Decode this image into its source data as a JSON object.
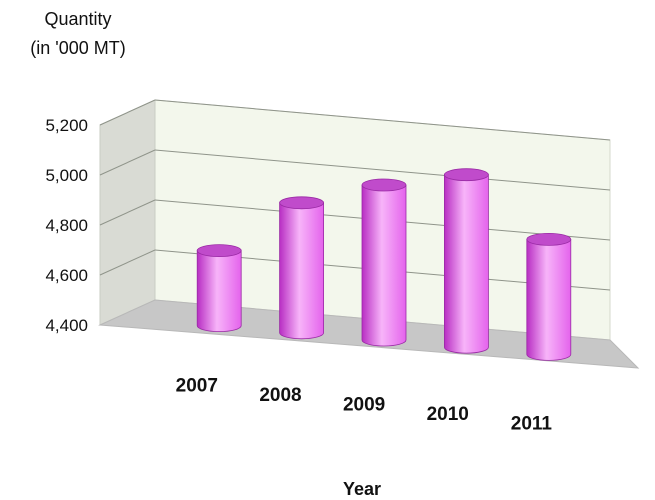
{
  "chart_data": {
    "type": "bar",
    "title": "",
    "ylabel_line1": "Quantity",
    "ylabel_line2": "(in '000 MT)",
    "xlabel": "Year",
    "categories": [
      "2007",
      "2008",
      "2009",
      "2010",
      "2011"
    ],
    "values": [
      4700,
      4920,
      5020,
      5090,
      4860
    ],
    "yticks": [
      "4,400",
      "4,600",
      "4,800",
      "5,000",
      "5,200"
    ],
    "ylim": [
      4400,
      5200
    ],
    "grid": true,
    "legend": "none",
    "bar_shape": "cylinder",
    "colors": {
      "bar_light": "#f7b4f9",
      "bar_mid": "#e463ec",
      "bar_dark": "#b82ec3",
      "bar_top": "#c04bcb",
      "back_wall": "#f3f7ec",
      "side_wall": "#d9dbd4",
      "floor": "#c7c7c7"
    }
  }
}
